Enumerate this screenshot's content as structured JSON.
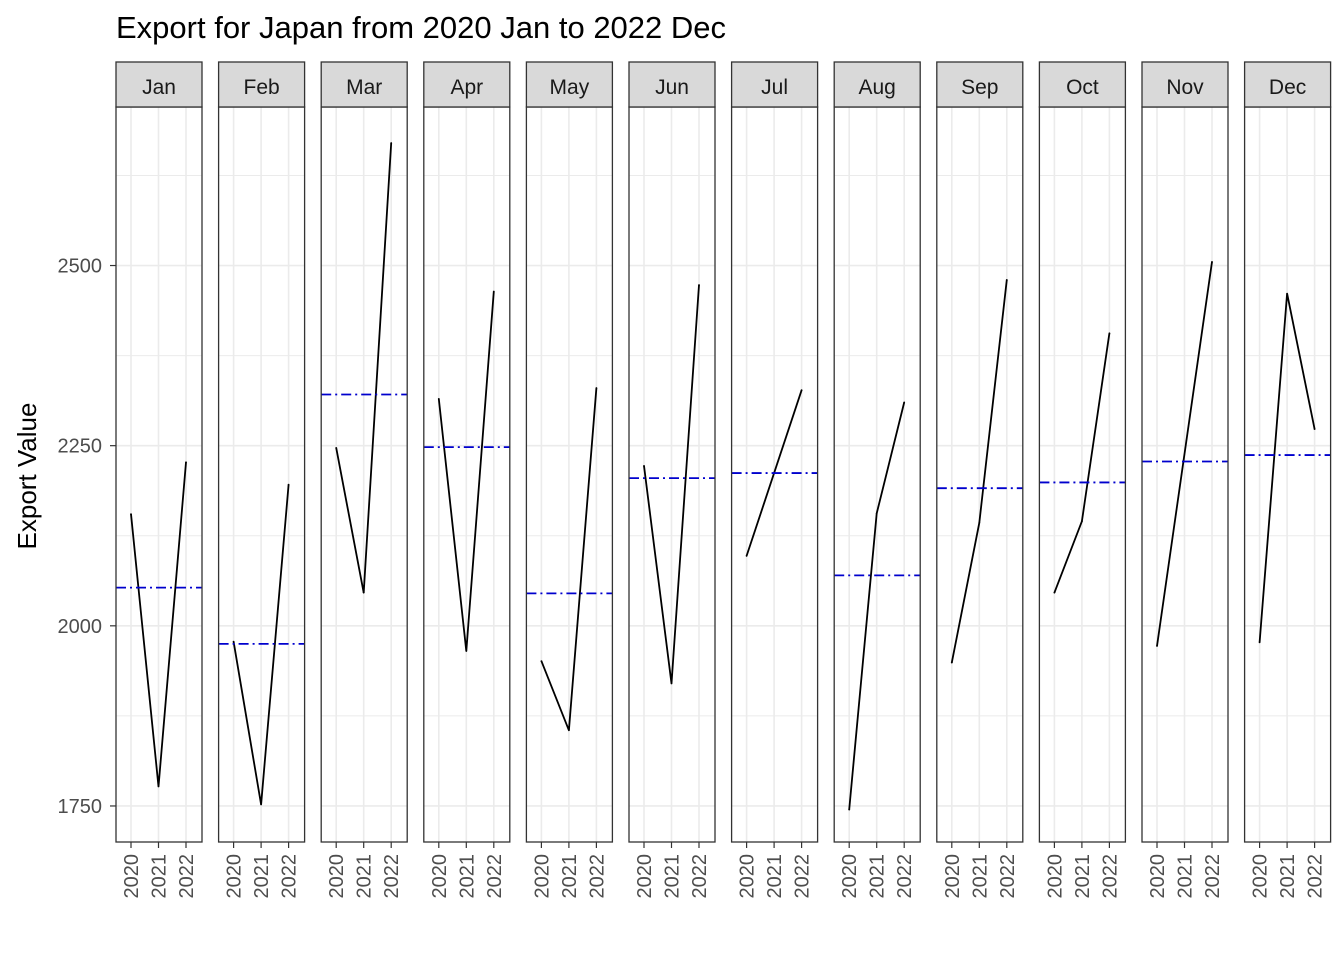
{
  "chart_data": {
    "type": "line",
    "title": "Export for Japan from 2020 Jan to 2022 Dec",
    "xlabel": "",
    "ylabel": "Export Value",
    "x": [
      "2020",
      "2021",
      "2022"
    ],
    "y_ticks": [
      1750,
      2000,
      2250,
      2500
    ],
    "ylim": [
      1700,
      2720
    ],
    "grid": true,
    "facets": [
      {
        "label": "Jan",
        "values": [
          2155,
          1777,
          2227
        ],
        "mean": 2053
      },
      {
        "label": "Feb",
        "values": [
          1978,
          1752,
          2196
        ],
        "mean": 1975
      },
      {
        "label": "Mar",
        "values": [
          2247,
          2046,
          2670
        ],
        "mean": 2321
      },
      {
        "label": "Apr",
        "values": [
          2315,
          1965,
          2464
        ],
        "mean": 2248
      },
      {
        "label": "May",
        "values": [
          1951,
          1855,
          2330
        ],
        "mean": 2045
      },
      {
        "label": "Jun",
        "values": [
          2222,
          1920,
          2473
        ],
        "mean": 2205
      },
      {
        "label": "Jul",
        "values": [
          2097,
          null,
          2327
        ],
        "mean": 2212
      },
      {
        "label": "Aug",
        "values": [
          1745,
          2156,
          2310
        ],
        "mean": 2070
      },
      {
        "label": "Sep",
        "values": [
          1949,
          2143,
          2480
        ],
        "mean": 2191
      },
      {
        "label": "Oct",
        "values": [
          2046,
          2145,
          2406
        ],
        "mean": 2199
      },
      {
        "label": "Nov",
        "values": [
          1972,
          null,
          2505
        ],
        "mean": 2228
      },
      {
        "label": "Dec",
        "values": [
          1977,
          2461,
          2273
        ],
        "mean": 2237
      }
    ],
    "colors": {
      "series": "#000000",
      "mean_line": "#0000cd",
      "grid": "#ebebeb",
      "strip_fill": "#d9d9d9",
      "border": "#333333"
    }
  }
}
